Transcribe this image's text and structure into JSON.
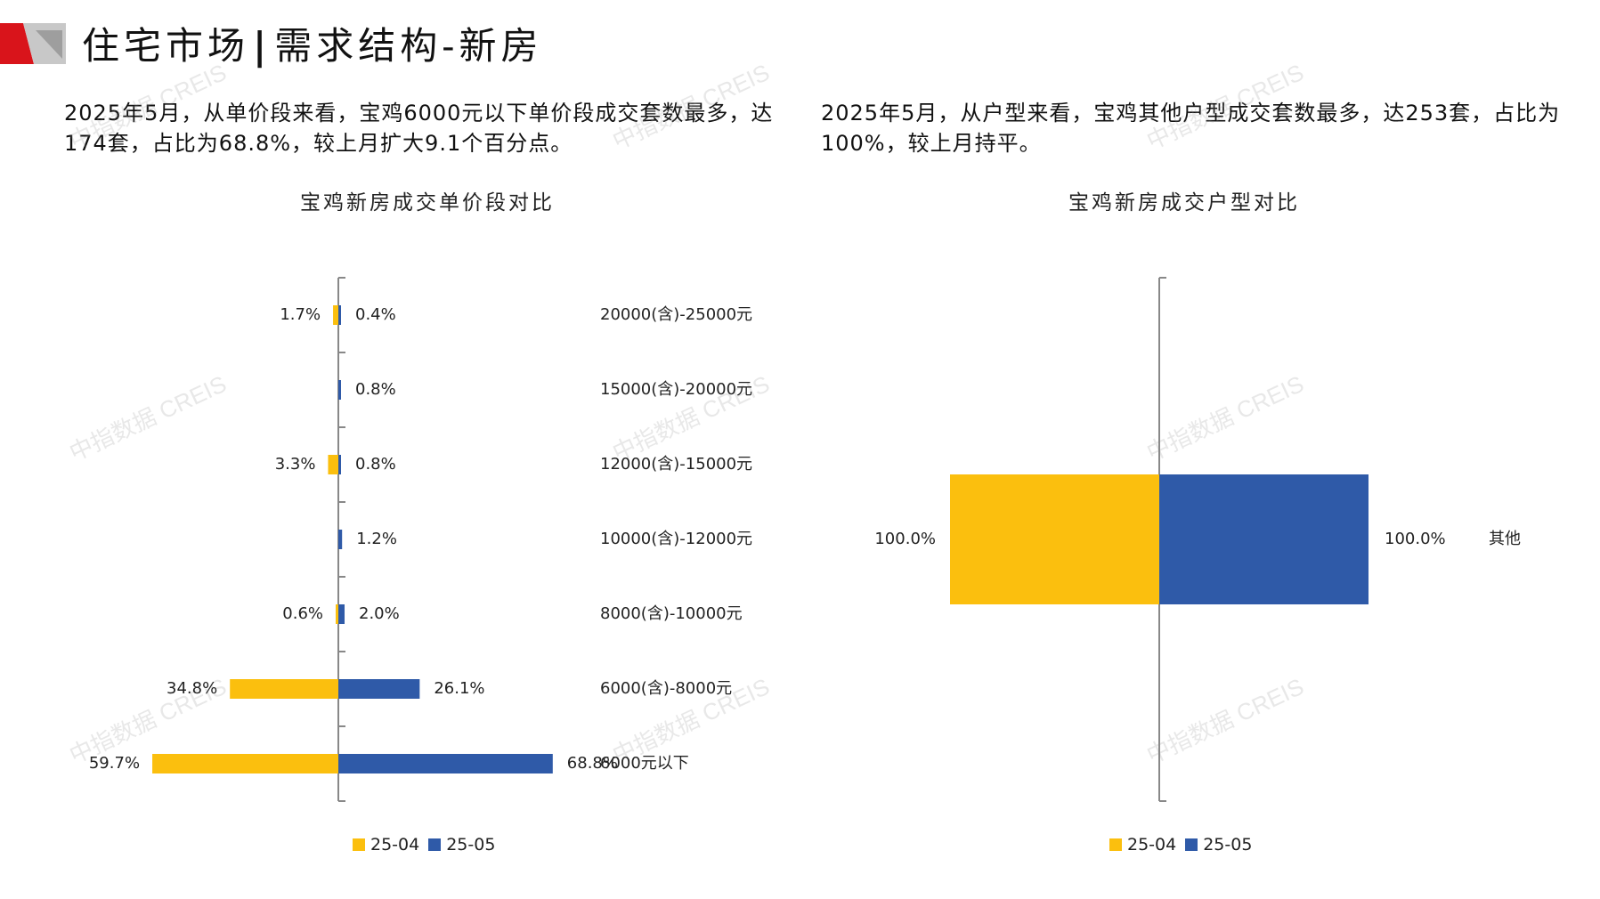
{
  "header": {
    "title_part1": "住宅市场",
    "title_separator": "|",
    "title_part2": "需求结构-新房"
  },
  "descriptions": {
    "left": "2025年5月，从单价段来看，宝鸡6000元以下单价段成交套数最多，达174套，占比为68.8%，较上月扩大9.1个百分点。",
    "right": "2025年5月，从户型来看，宝鸡其他户型成交套数最多，达253套，占比为100%，较上月持平。"
  },
  "watermark": "中指数据 CREIS",
  "colors": {
    "series_2504": "#FBBF0E",
    "series_2505": "#2F5AA8",
    "axis": "#888888",
    "logo_red": "#D9141B"
  },
  "chart_data": [
    {
      "type": "bar",
      "orientation": "horizontal-butterfly",
      "title": "宝鸡新房成交单价段对比",
      "categories": [
        "20000(含)-25000元",
        "15000(含)-20000元",
        "12000(含)-15000元",
        "10000(含)-12000元",
        "8000(含)-10000元",
        "6000(含)-8000元",
        "6000元以下"
      ],
      "series": [
        {
          "name": "25-04",
          "values": [
            1.7,
            null,
            3.3,
            null,
            0.6,
            34.8,
            59.7
          ],
          "labels": [
            "1.7%",
            "",
            "3.3%",
            "",
            "0.6%",
            "34.8%",
            "59.7%"
          ]
        },
        {
          "name": "25-05",
          "values": [
            0.4,
            0.8,
            0.8,
            1.2,
            2.0,
            26.1,
            68.8
          ],
          "labels": [
            "0.4%",
            "0.8%",
            "0.8%",
            "1.2%",
            "2.0%",
            "26.1%",
            "68.8%"
          ]
        }
      ],
      "legend_position": "bottom",
      "grid": false
    },
    {
      "type": "bar",
      "orientation": "horizontal-butterfly",
      "title": "宝鸡新房成交户型对比",
      "categories": [
        "其他"
      ],
      "series": [
        {
          "name": "25-04",
          "values": [
            100.0
          ],
          "labels": [
            "100.0%"
          ]
        },
        {
          "name": "25-05",
          "values": [
            100.0
          ],
          "labels": [
            "100.0%"
          ]
        }
      ],
      "legend_position": "bottom",
      "grid": false
    }
  ]
}
